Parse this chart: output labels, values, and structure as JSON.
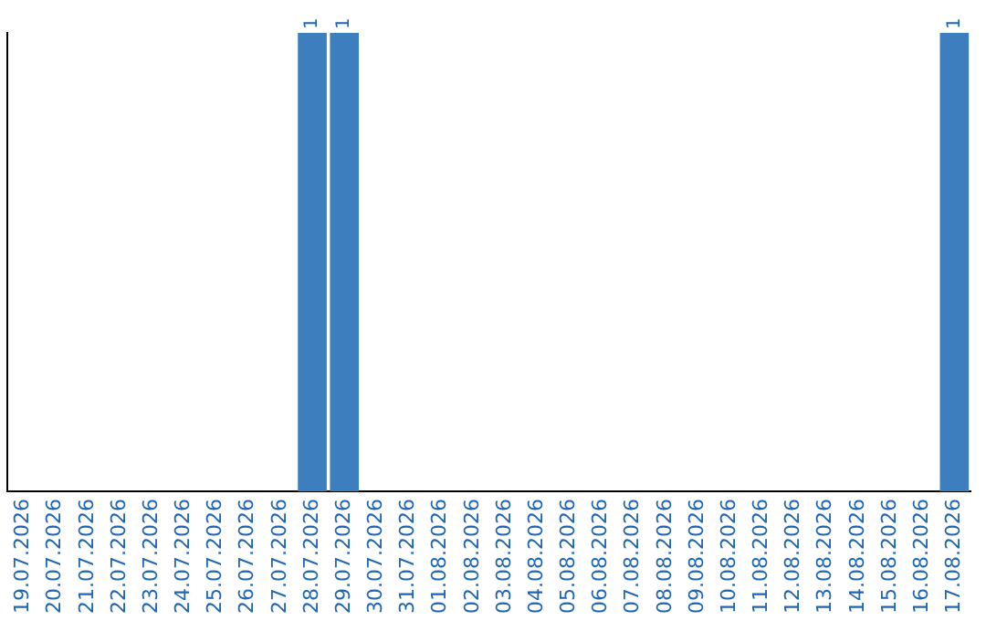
{
  "chart_data": {
    "type": "bar",
    "categories": [
      "19.07.2026",
      "20.07.2026",
      "21.07.2026",
      "22.07.2026",
      "23.07.2026",
      "24.07.2026",
      "25.07.2026",
      "26.07.2026",
      "27.07.2026",
      "28.07.2026",
      "29.07.2026",
      "30.07.2026",
      "31.07.2026",
      "01.08.2026",
      "02.08.2026",
      "03.08.2026",
      "04.08.2026",
      "05.08.2026",
      "06.08.2026",
      "07.08.2026",
      "08.08.2026",
      "09.08.2026",
      "10.08.2026",
      "11.08.2026",
      "12.08.2026",
      "13.08.2026",
      "14.08.2026",
      "15.08.2026",
      "16.08.2026",
      "17.08.2026"
    ],
    "values": [
      0,
      0,
      0,
      0,
      0,
      0,
      0,
      0,
      0,
      1,
      1,
      0,
      0,
      0,
      0,
      0,
      0,
      0,
      0,
      0,
      0,
      0,
      0,
      0,
      0,
      0,
      0,
      0,
      0,
      1
    ],
    "value_labels": [
      null,
      null,
      null,
      null,
      null,
      null,
      null,
      null,
      null,
      "1",
      "1",
      null,
      null,
      null,
      null,
      null,
      null,
      null,
      null,
      null,
      null,
      null,
      null,
      null,
      null,
      null,
      null,
      null,
      null,
      "1"
    ],
    "color": "#3d7ebf",
    "grid": false,
    "legend": false,
    "tick_labels": "x"
  }
}
